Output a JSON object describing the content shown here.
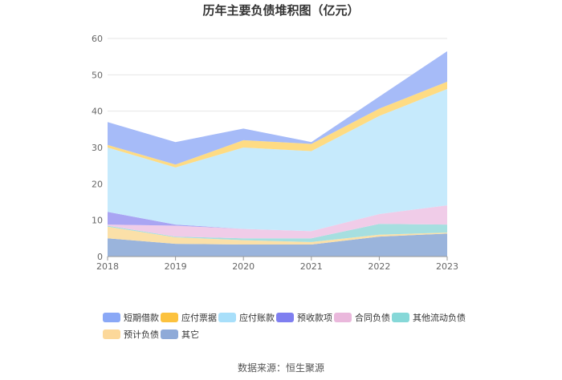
{
  "chart_data": {
    "type": "area",
    "stacked": true,
    "title": "历年主要负债堆积图（亿元）",
    "x": [
      "2018",
      "2019",
      "2020",
      "2021",
      "2022",
      "2023"
    ],
    "ylim": [
      0,
      60
    ],
    "yticks": [
      0,
      10,
      20,
      30,
      40,
      50,
      60
    ],
    "grid": true,
    "legend_position": "bottom",
    "series": [
      {
        "name": "其它",
        "color": "#9ab4dc",
        "values": [
          5.0,
          3.5,
          3.3,
          3.3,
          5.5,
          6.3
        ]
      },
      {
        "name": "预计负债",
        "color": "#fbe0a8",
        "values": [
          3.2,
          1.8,
          1.2,
          0.7,
          0.5,
          0.3
        ]
      },
      {
        "name": "其他流动负债",
        "color": "#a6dfe0",
        "values": [
          0.3,
          0.2,
          0.5,
          1.0,
          3.0,
          2.2
        ]
      },
      {
        "name": "合同负债",
        "color": "#f0cce8",
        "values": [
          0.3,
          3.0,
          2.6,
          2.0,
          2.7,
          5.3
        ]
      },
      {
        "name": "预收款项",
        "color": "#a9a5f3",
        "values": [
          3.5,
          0.3,
          0.0,
          0.0,
          0.0,
          0.0
        ]
      },
      {
        "name": "应付账款",
        "color": "#c6eafc",
        "values": [
          17.7,
          15.7,
          22.4,
          22.0,
          27.0,
          32.0
        ]
      },
      {
        "name": "应付票据",
        "color": "#fedb83",
        "values": [
          0.7,
          0.8,
          2.0,
          2.0,
          2.0,
          2.0
        ]
      },
      {
        "name": "短期借款",
        "color": "#a6bbf8",
        "values": [
          6.3,
          6.2,
          3.2,
          0.5,
          3.3,
          8.4
        ]
      }
    ]
  },
  "legend": [
    {
      "label": "短期借款",
      "color": "#8aa8f6"
    },
    {
      "label": "应付票据",
      "color": "#fcc23e"
    },
    {
      "label": "应付账款",
      "color": "#a8dffa"
    },
    {
      "label": "预收款项",
      "color": "#7f7ff0"
    },
    {
      "label": "合同负债",
      "color": "#eab8dc"
    },
    {
      "label": "其他流动负债",
      "color": "#86d8d8"
    },
    {
      "label": "预计负债",
      "color": "#fcd89a"
    },
    {
      "label": "其它",
      "color": "#8eaad8"
    }
  ],
  "source": "数据来源：恒生聚源"
}
